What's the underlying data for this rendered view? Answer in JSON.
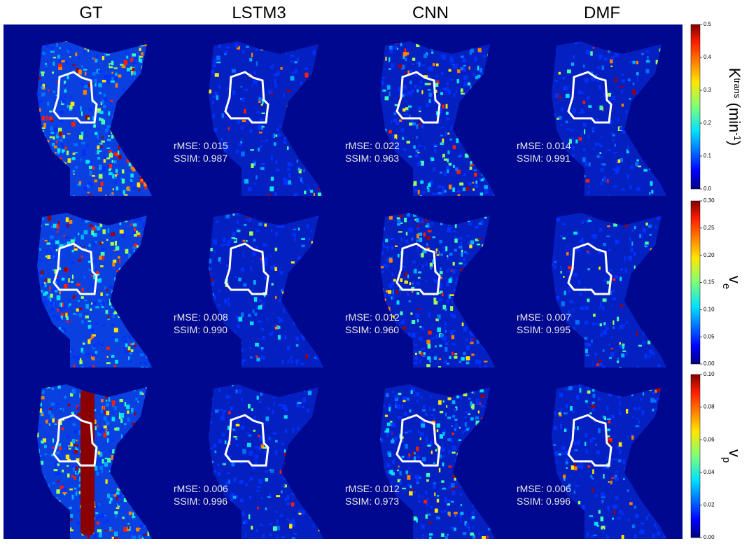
{
  "columns": [
    "GT",
    "LSTM3",
    "CNN",
    "DMF"
  ],
  "rows": [
    {
      "metrics": [
        null,
        {
          "rmse": "rMSE: 0.015",
          "ssim": "SSIM: 0.987"
        },
        {
          "rmse": "rMSE: 0.022",
          "ssim": "SSIM: 0.963"
        },
        {
          "rmse": "rMSE: 0.014",
          "ssim": "SSIM: 0.991"
        }
      ],
      "colorbar": {
        "label": {
          "base": "K",
          "sup": "trans",
          "unit": " (min",
          "unit_sup": "-1",
          "close": ")"
        },
        "lim": [
          0,
          0.5
        ],
        "ticks": [
          {
            "value": 0,
            "label": "0.0"
          },
          0.1,
          0.2,
          0.3,
          0.4,
          0.5
        ]
      }
    },
    {
      "metrics": [
        null,
        {
          "rmse": "rMSE: 0.008",
          "ssim": "SSIM: 0.990"
        },
        {
          "rmse": "rMSE: 0.012",
          "ssim": "SSIM: 0.960"
        },
        {
          "rmse": "rMSE: 0.007",
          "ssim": "SSIM: 0.995"
        }
      ],
      "colorbar": {
        "label": {
          "base": "v",
          "sub": "e"
        },
        "lim": [
          0,
          0.3
        ],
        "ticks": [
          {
            "value": 0,
            "label": "0.00"
          },
          0.05,
          {
            "value": 0.1,
            "label": "0.10"
          },
          0.15,
          {
            "value": 0.2,
            "label": "0.20"
          },
          0.25,
          {
            "value": 0.3,
            "label": "0.30"
          }
        ]
      }
    },
    {
      "metrics": [
        null,
        {
          "rmse": "rMSE: 0.006",
          "ssim": "SSIM: 0.996"
        },
        {
          "rmse": "rMSE: 0.012",
          "ssim": "SSIM: 0.973"
        },
        {
          "rmse": "rMSE: 0.006",
          "ssim": "SSIM: 0.996"
        }
      ],
      "colorbar": {
        "label": {
          "base": "v",
          "sub": "p"
        },
        "lim": [
          0,
          0.1
        ],
        "ticks": [
          {
            "value": 0,
            "label": "0.00"
          },
          0.02,
          0.04,
          0.06,
          0.08,
          {
            "value": 0.1,
            "label": "0.10"
          }
        ]
      }
    }
  ]
}
